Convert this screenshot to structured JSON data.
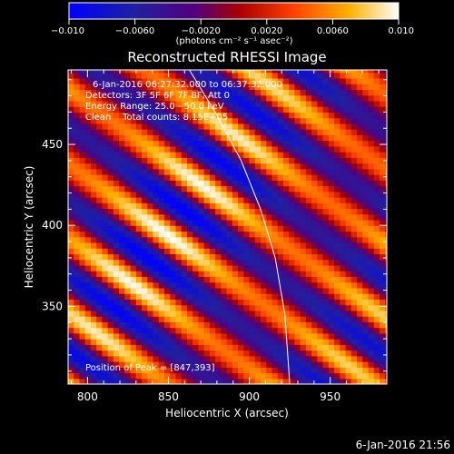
{
  "chart_data": {
    "type": "heatmap",
    "title": "Reconstructed RHESSI Image",
    "xlabel": "Heliocentric X (arcsec)",
    "ylabel": "Heliocentric Y (arcsec)",
    "xlim": [
      788,
      985
    ],
    "ylim": [
      302,
      496
    ],
    "x_ticks": [
      800,
      850,
      900,
      950
    ],
    "y_ticks": [
      350,
      400,
      450
    ],
    "colorbar": {
      "range": [
        -0.01,
        0.01
      ],
      "ticks": [
        -0.01,
        -0.006,
        -0.002,
        0.002,
        0.006,
        0.01
      ],
      "tick_labels": [
        "−0.010",
        "−0.0060",
        "−0.0020",
        "0.0020",
        "0.0060",
        "0.010"
      ],
      "units_label": "(photons cm⁻² s⁻¹ asec⁻²)",
      "stops": [
        "#0000ff",
        "#2020a0",
        "#500080",
        "#aa0000",
        "#ff4000",
        "#ffb000",
        "#ffffff"
      ]
    },
    "annotations": [
      "6-Jan-2016 06:27:32.000 to 06:37:32.000",
      "Detectors: 3F 5F 6F 7F 8F, Att 0",
      "Energy Range: 25.0 - 50.0 keV",
      "Clean    Total counts: 8.15E+05"
    ],
    "peak_label": "Position of Peak = [847,393]",
    "peak_position": [
      847,
      393
    ],
    "limb_curve": {
      "x": [
        863,
        880,
        895,
        907,
        916,
        922,
        925
      ],
      "y": [
        496,
        468,
        440,
        410,
        380,
        345,
        302
      ]
    }
  },
  "footer": {
    "timestamp": "6-Jan-2016 21:56"
  }
}
